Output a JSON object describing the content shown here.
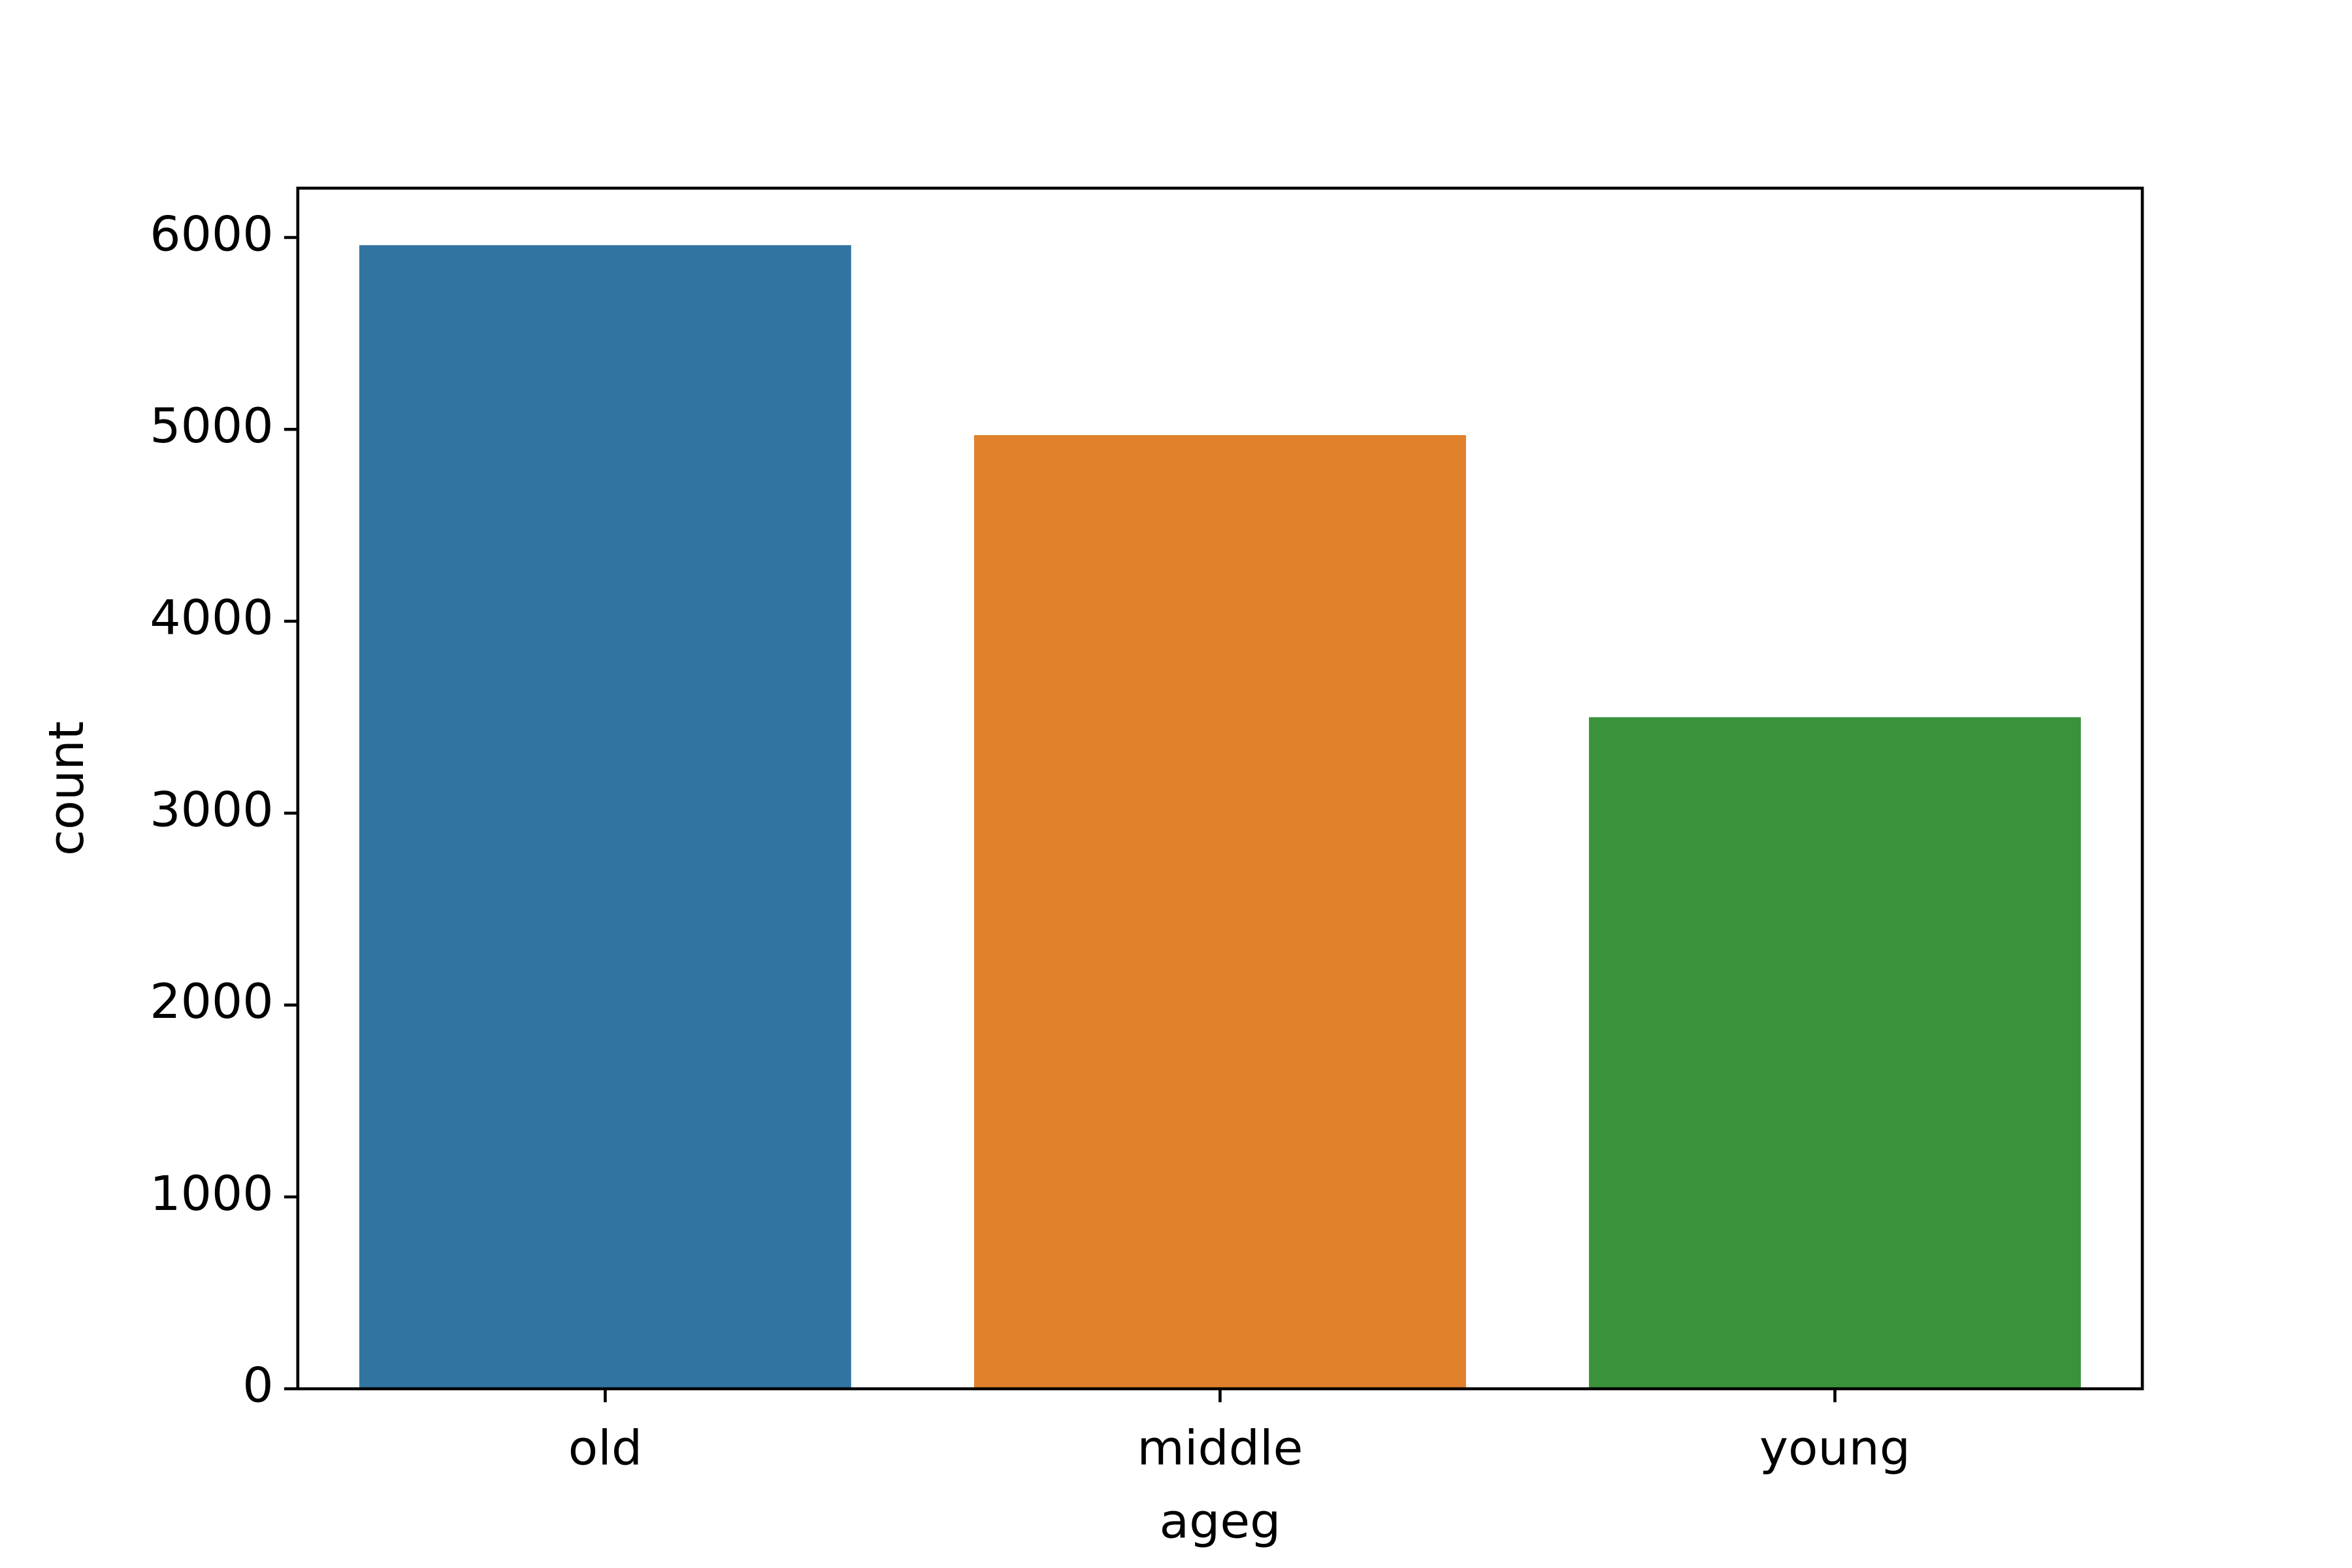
{
  "chart_data": {
    "type": "bar",
    "x_label": "ageg",
    "y_label": "count",
    "categories": [
      "old",
      "middle",
      "young"
    ],
    "values": [
      5960,
      4970,
      3500
    ],
    "colors": [
      "#3274a1",
      "#e1812c",
      "#3a923a"
    ],
    "ylim": [
      0,
      6257
    ],
    "yticks": [
      0,
      1000,
      2000,
      3000,
      4000,
      5000,
      6000
    ]
  }
}
